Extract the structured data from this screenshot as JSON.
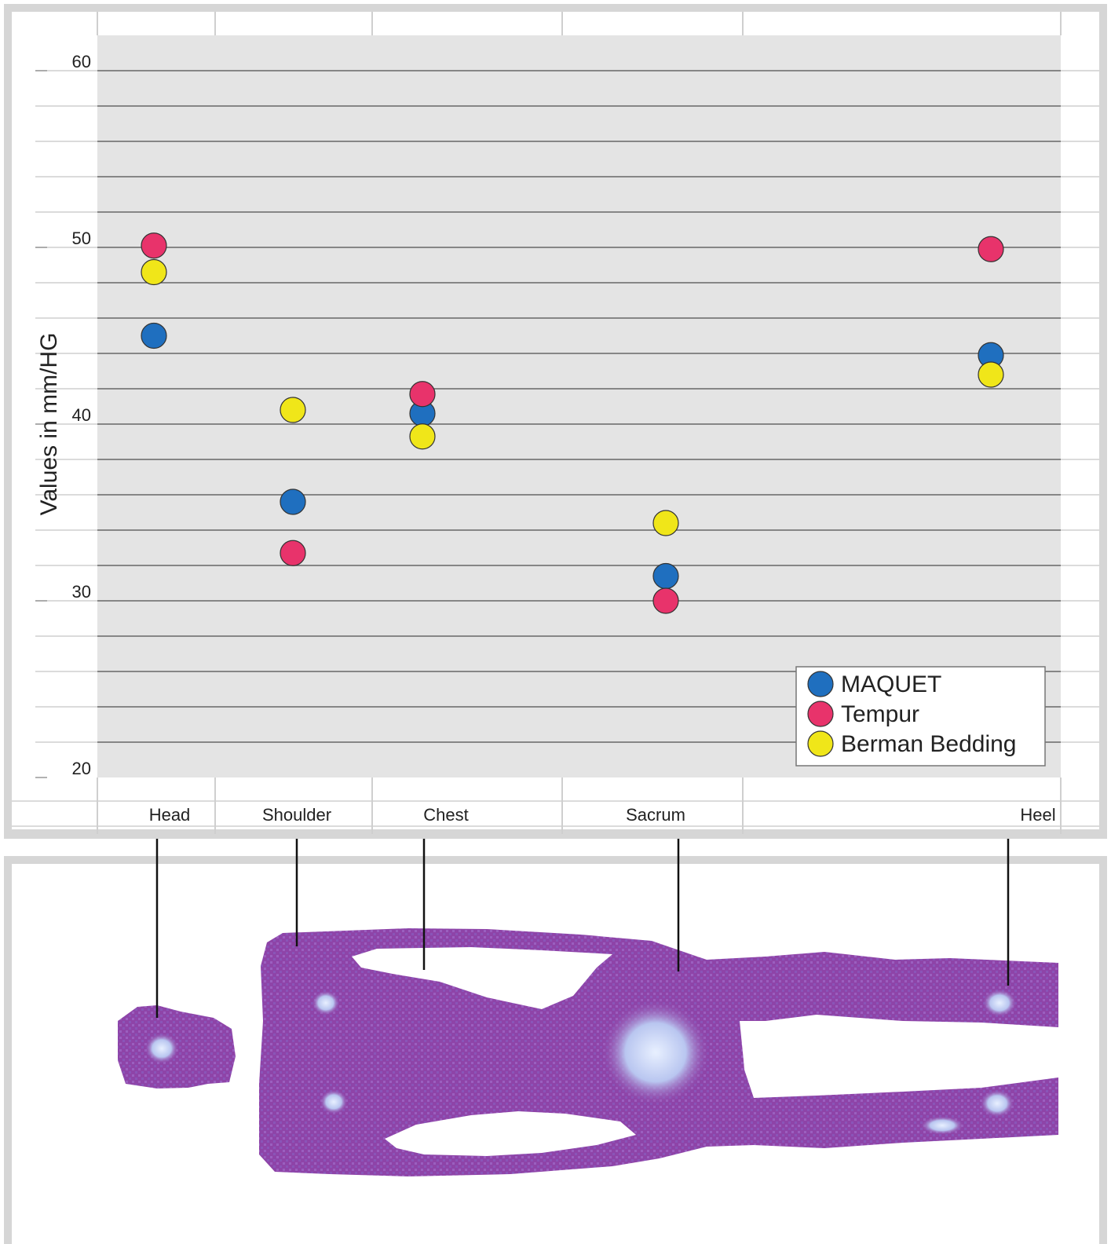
{
  "chart_data": {
    "type": "scatter",
    "ylabel": "Values in mm/HG",
    "ylim": [
      20,
      60
    ],
    "yticks": [
      20,
      30,
      40,
      50,
      60
    ],
    "categories": [
      "Head",
      "Shoulder",
      "Chest",
      "Sacrum",
      "Heel"
    ],
    "series": [
      {
        "name": "MAQUET",
        "color": "#1f6fbf",
        "values": [
          45,
          35.6,
          40.6,
          31.4,
          43.9
        ]
      },
      {
        "name": "Tempur",
        "color": "#e8336b",
        "values": [
          50.1,
          32.7,
          41.7,
          30,
          49.9
        ]
      },
      {
        "name": "Berman Bedding",
        "color": "#f0e619",
        "values": [
          48.6,
          40.8,
          39.3,
          34.4,
          42.8
        ]
      }
    ],
    "legend_position": "bottom-right",
    "grid": true,
    "colors": {
      "plot_bg": "#e4e4e4",
      "frame": "#d6d6d6",
      "body_map": "#8e44a8",
      "body_map_light": "#b9c6f0"
    }
  },
  "figure": {
    "body_map_icon": "body-pressure-map"
  }
}
